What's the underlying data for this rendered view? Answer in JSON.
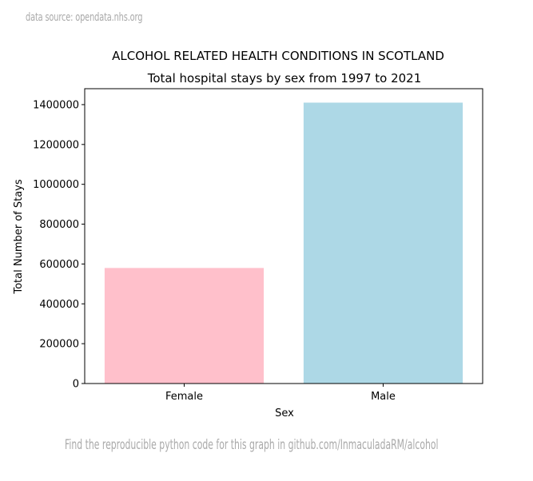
{
  "source_note": "data source: opendata.nhs.org",
  "footer_note": "Find the reproducible python code for this graph in github.com/InmaculadaRM/alcohol",
  "chart_data": {
    "type": "bar",
    "title": "ALCOHOL RELATED HEALTH CONDITIONS IN SCOTLAND",
    "subtitle": "Total hospital stays by sex from 1997 to 2021",
    "xlabel": "Sex",
    "ylabel": "Total Number of Stays",
    "categories": [
      "Female",
      "Male"
    ],
    "values": [
      580000,
      1410000
    ],
    "colors": [
      "#ffc0cb",
      "#add8e6"
    ],
    "ylim": [
      0,
      1480000
    ],
    "yticks": [
      0,
      200000,
      400000,
      600000,
      800000,
      1000000,
      1200000,
      1400000
    ],
    "grid": false
  }
}
